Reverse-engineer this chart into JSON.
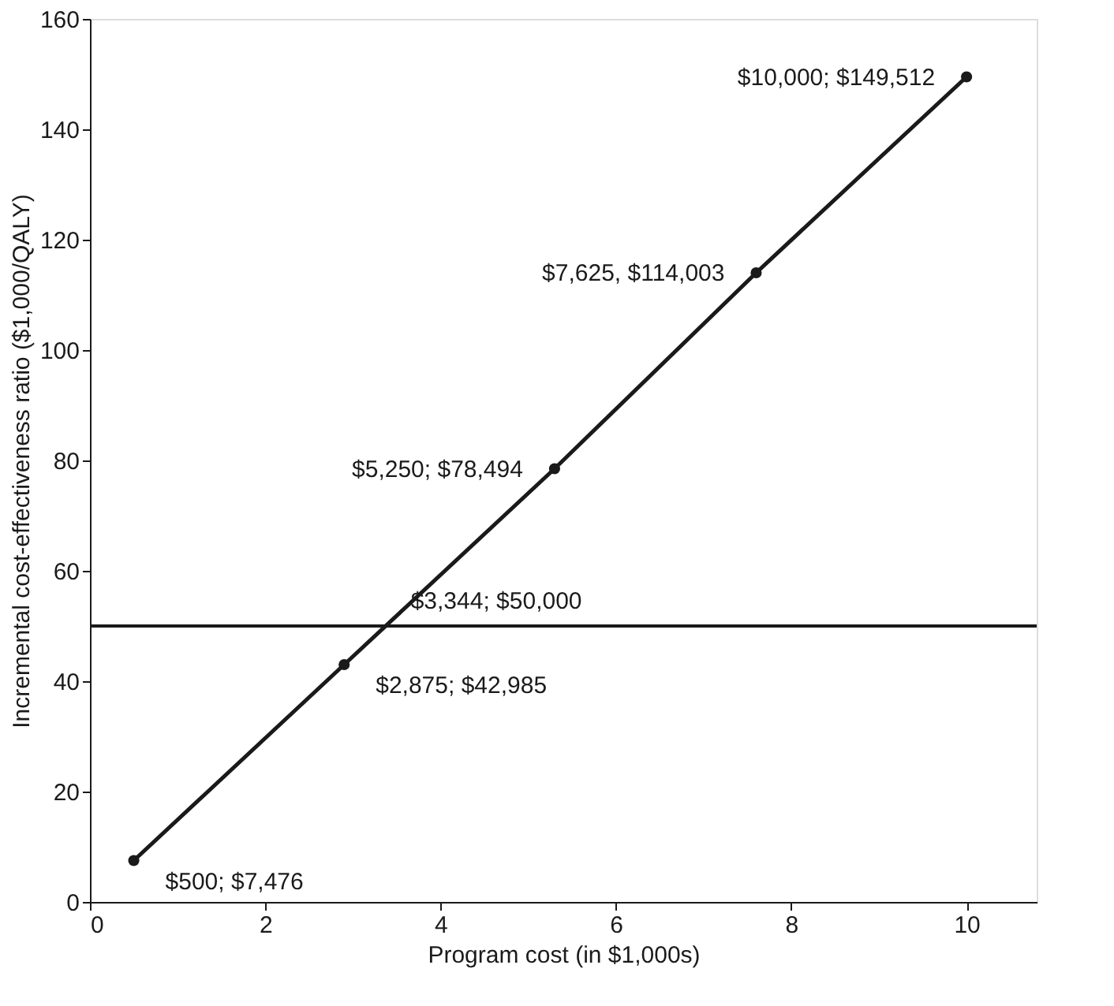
{
  "chart_data": {
    "type": "line",
    "xlabel": "Program cost (in $1,000s)",
    "ylabel": "Incremental cost-effectiveness ratio ($1,000/QALY)",
    "xlim": [
      0,
      10.8
    ],
    "xticks": [
      0,
      2,
      4,
      6,
      8,
      10
    ],
    "ylim": [
      0,
      160
    ],
    "yticks": [
      0,
      20,
      40,
      60,
      80,
      100,
      120,
      140,
      160
    ],
    "grid": false,
    "marker": "circle",
    "line_style": "solid",
    "series": [
      {
        "color": "#1a1a1a",
        "x": [
          0.5,
          2.9,
          5.3,
          7.6,
          10
        ],
        "values": [
          7.5,
          43,
          78.5,
          114,
          149.5
        ]
      }
    ],
    "ref_lines": [
      {
        "axis": "y",
        "value": 50,
        "color": "#1a1a1a"
      }
    ],
    "annotations": [
      {
        "text": "$500; $7,476",
        "x": 0.5,
        "y": 7.5
      },
      {
        "text": "$2,875; $42,985",
        "x": 2.9,
        "y": 43
      },
      {
        "text": "$3,344; $50,000",
        "x": 3.3,
        "y": 50
      },
      {
        "text": "$5,250; $78,494",
        "x": 5.3,
        "y": 78.5
      },
      {
        "text": "$7,625, $114,003",
        "x": 7.6,
        "y": 114
      },
      {
        "text": "$10,000; $149,512",
        "x": 10,
        "y": 149.5
      }
    ]
  }
}
